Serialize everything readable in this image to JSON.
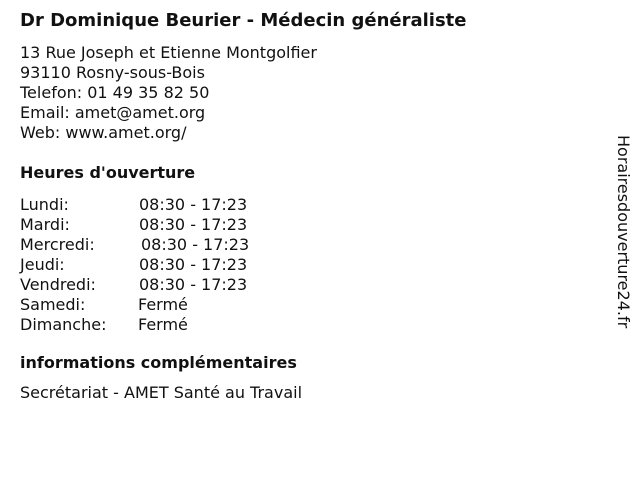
{
  "title": "Dr Dominique Beurier - Médecin généraliste",
  "address": {
    "street": "13 Rue Joseph et Etienne Montgolfier",
    "city": "93110 Rosny-sous-Bois",
    "phone": "Telefon: 01 49 35 82 50",
    "email": "Email: amet@amet.org",
    "web": "Web: www.amet.org/"
  },
  "hours_heading": "Heures d'ouverture",
  "hours": [
    {
      "day": "Lundi:",
      "time": "08:30 - 17:23"
    },
    {
      "day": "Mardi:",
      "time": "08:30 - 17:23"
    },
    {
      "day": "Mercredi:",
      "time": "08:30 - 17:23"
    },
    {
      "day": "Jeudi:",
      "time": "08:30 - 17:23"
    },
    {
      "day": "Vendredi:",
      "time": "08:30 - 17:23"
    },
    {
      "day": "Samedi:",
      "time": "Fermé"
    },
    {
      "day": "Dimanche:",
      "time": "Fermé"
    }
  ],
  "info_heading": "informations complémentaires",
  "info_text": "Secrétariat - AMET Santé au Travail",
  "watermark": "Horairesdouverture24.fr"
}
